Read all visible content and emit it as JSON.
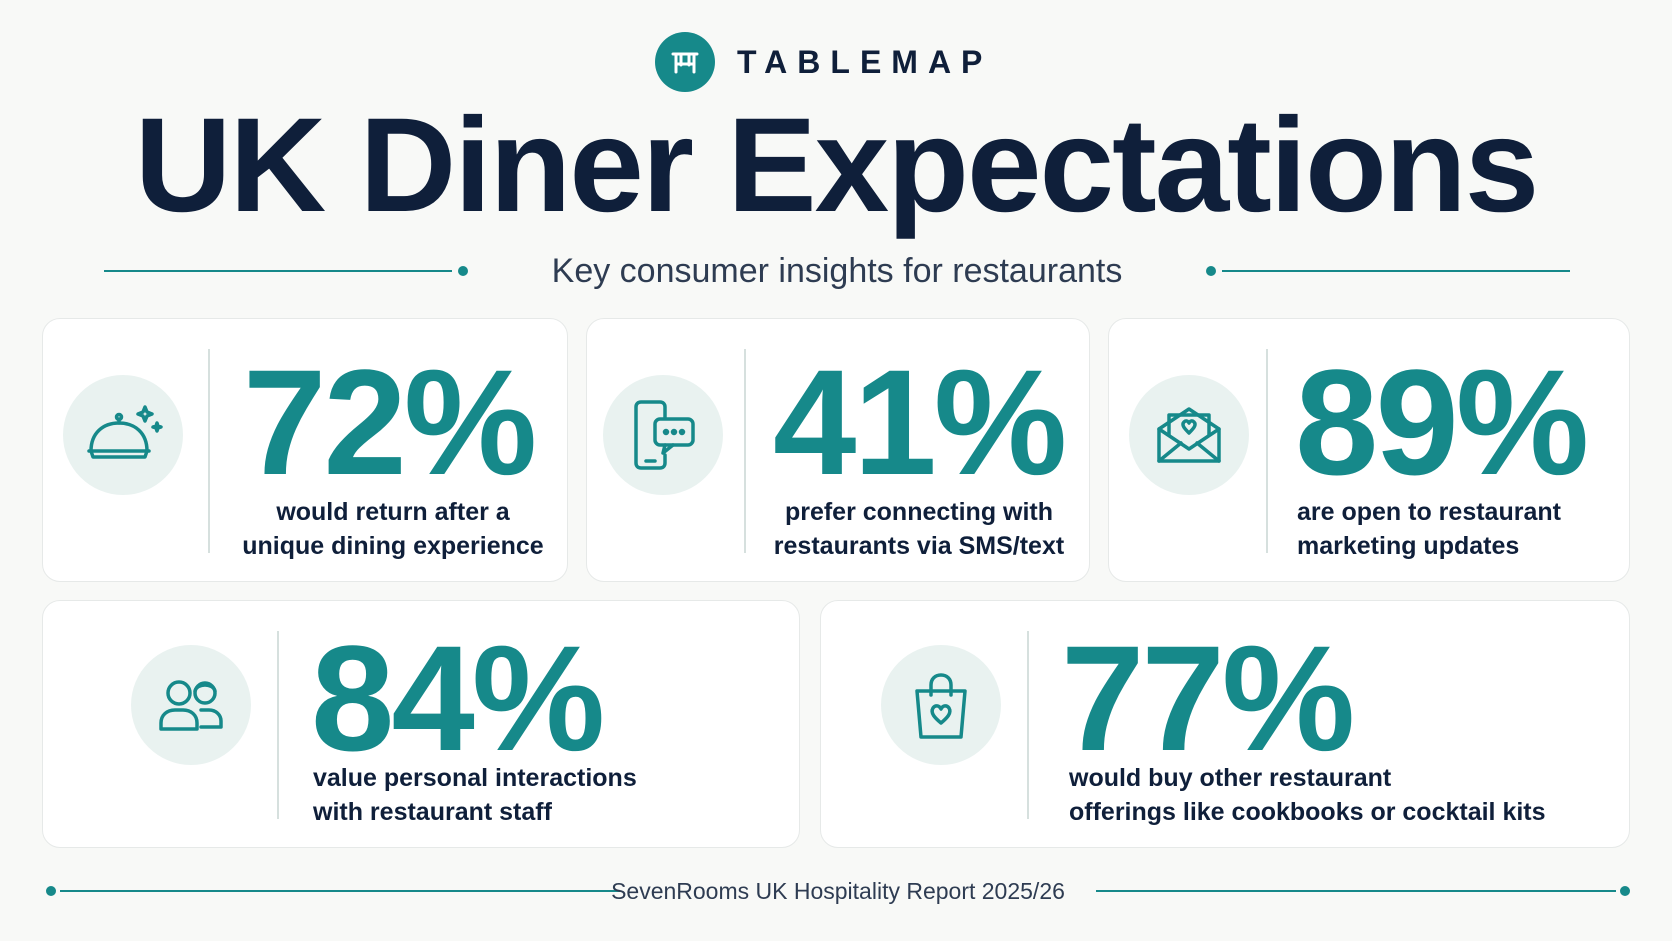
{
  "brand": {
    "name": "TABLEMAP",
    "logo_icon": "restaurant-table-icon",
    "accent_color": "#16898a"
  },
  "title": "UK Diner Expectations",
  "subtitle": "Key consumer insights for restaurants",
  "stats": [
    {
      "value": "72%",
      "line1": "would return after a",
      "line2": "unique dining experience",
      "icon": "serving-cloche-icon"
    },
    {
      "value": "41%",
      "line1": "prefer connecting with",
      "line2": "restaurants via SMS/text",
      "icon": "phone-chat-icon"
    },
    {
      "value": "89%",
      "line1": "are open to restaurant",
      "line2": "marketing updates",
      "icon": "envelope-heart-icon"
    },
    {
      "value": "84%",
      "line1": "value personal interactions",
      "line2": "with restaurant staff",
      "icon": "people-icon"
    },
    {
      "value": "77%",
      "line1": "would buy other restaurant",
      "line2": "offerings like cookbooks or cocktail kits",
      "icon": "shopping-bag-heart-icon"
    }
  ],
  "footer": {
    "source": "SevenRooms UK Hospitality Report 2025/26"
  },
  "colors": {
    "navy": "#0f1f3a",
    "teal": "#16898a",
    "icon_bg": "#e9f2f0"
  }
}
